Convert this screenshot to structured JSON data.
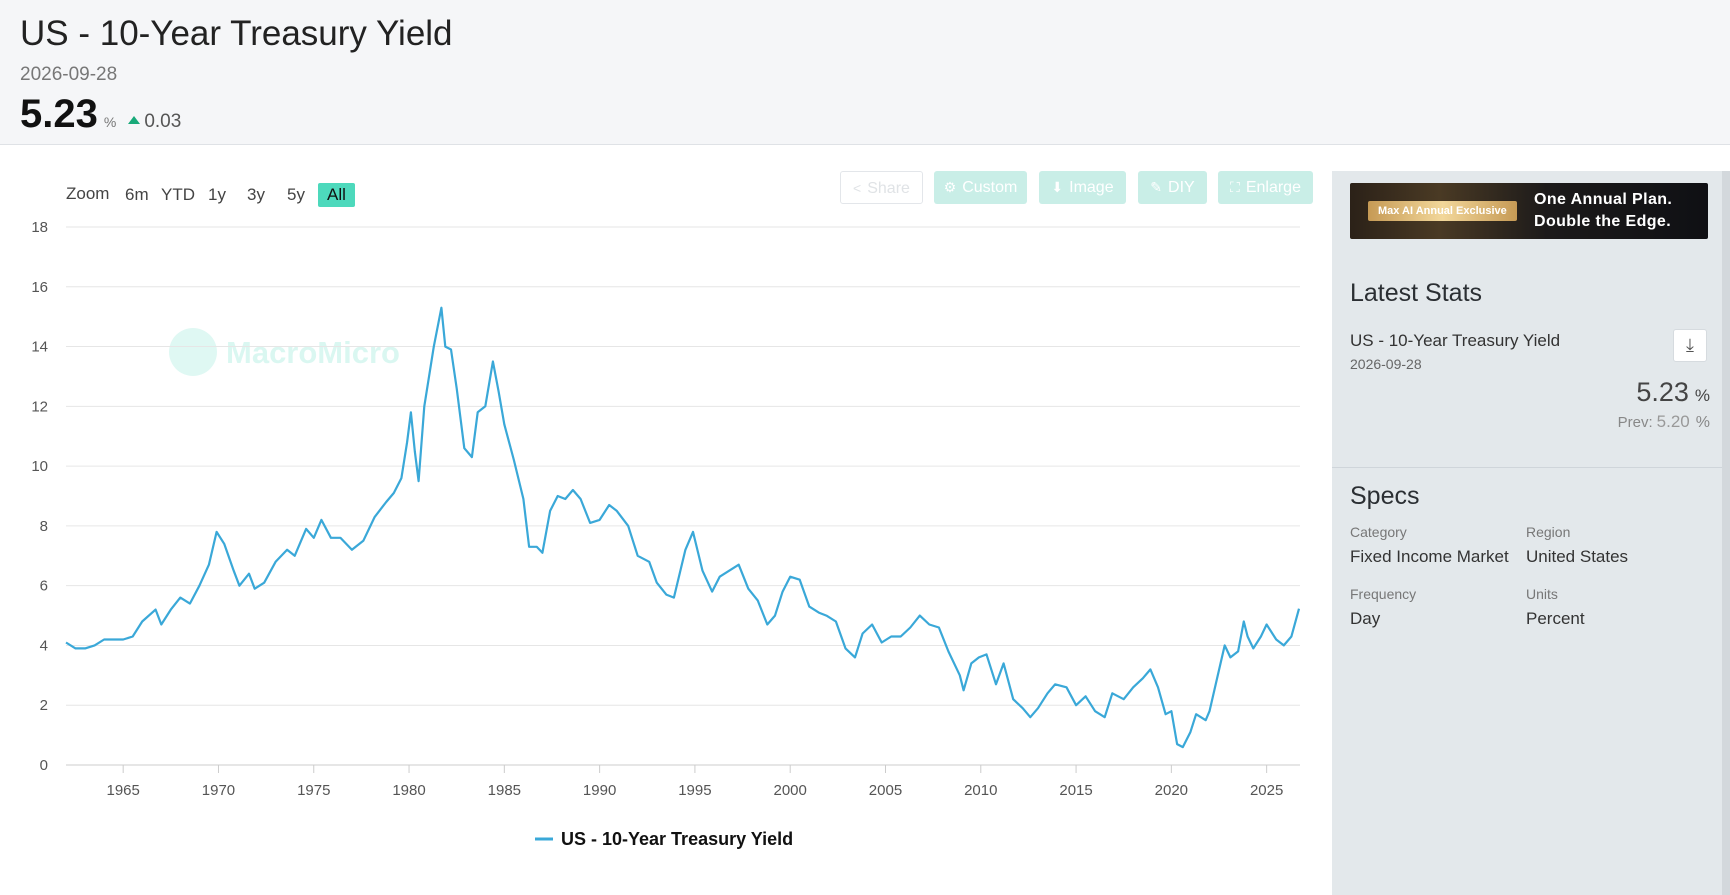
{
  "header": {
    "title": "US - 10-Year Treasury Yield",
    "date": "2026-09-28",
    "value": "5.23",
    "unit": "%",
    "change": "0.03",
    "change_color": "#18a979"
  },
  "toolbar": {
    "zoom_label": "Zoom",
    "ranges": [
      "6m",
      "YTD",
      "1y",
      "3y",
      "5y",
      "All"
    ],
    "active_range": "All",
    "buttons": {
      "share": "Share",
      "custom": "Custom",
      "image": "Image",
      "diy": "DIY",
      "enlarge": "Enlarge"
    }
  },
  "watermark": "MacroMicro",
  "chart_data": {
    "type": "line",
    "title": "",
    "xlabel": "",
    "ylabel": "",
    "xlim": [
      1962,
      2026.75
    ],
    "ylim": [
      0,
      18
    ],
    "y_ticks": [
      0,
      2,
      4,
      6,
      8,
      10,
      12,
      14,
      16,
      18
    ],
    "x_ticks": [
      1965,
      1970,
      1975,
      1980,
      1985,
      1990,
      1995,
      2000,
      2005,
      2010,
      2015,
      2020,
      2025
    ],
    "grid": true,
    "legend_position": "bottom-center",
    "series": [
      {
        "name": "US - 10-Year Treasury Yield",
        "color": "#3aa8d8",
        "x": [
          1962.0,
          1962.5,
          1963.0,
          1963.5,
          1964.0,
          1964.5,
          1965.0,
          1965.5,
          1966.0,
          1966.7,
          1967.0,
          1967.5,
          1968.0,
          1968.5,
          1969.0,
          1969.5,
          1969.9,
          1970.3,
          1970.8,
          1971.1,
          1971.6,
          1971.9,
          1972.4,
          1973.0,
          1973.6,
          1974.0,
          1974.6,
          1975.0,
          1975.4,
          1975.9,
          1976.4,
          1977.0,
          1977.6,
          1978.2,
          1978.8,
          1979.2,
          1979.6,
          1979.9,
          1980.1,
          1980.3,
          1980.5,
          1980.8,
          1981.0,
          1981.3,
          1981.7,
          1981.9,
          1982.2,
          1982.5,
          1982.9,
          1983.3,
          1983.6,
          1984.0,
          1984.4,
          1984.7,
          1985.0,
          1985.5,
          1986.0,
          1986.3,
          1986.7,
          1987.0,
          1987.4,
          1987.8,
          1988.2,
          1988.6,
          1989.0,
          1989.5,
          1990.0,
          1990.5,
          1990.9,
          1991.5,
          1992.0,
          1992.6,
          1993.0,
          1993.5,
          1993.9,
          1994.5,
          1994.9,
          1995.4,
          1995.9,
          1996.3,
          1996.8,
          1997.3,
          1997.8,
          1998.3,
          1998.8,
          1999.2,
          1999.6,
          2000.0,
          2000.5,
          2001.0,
          2001.5,
          2001.9,
          2002.4,
          2002.9,
          2003.4,
          2003.8,
          2004.3,
          2004.8,
          2005.3,
          2005.8,
          2006.3,
          2006.8,
          2007.3,
          2007.8,
          2008.3,
          2008.9,
          2009.1,
          2009.5,
          2009.9,
          2010.3,
          2010.8,
          2011.2,
          2011.7,
          2012.2,
          2012.6,
          2013.0,
          2013.5,
          2013.9,
          2014.5,
          2015.0,
          2015.5,
          2016.0,
          2016.5,
          2016.9,
          2017.5,
          2018.0,
          2018.5,
          2018.9,
          2019.3,
          2019.7,
          2020.0,
          2020.3,
          2020.6,
          2021.0,
          2021.3,
          2021.8,
          2022.0,
          2022.4,
          2022.8,
          2023.1,
          2023.5,
          2023.8,
          2024.0,
          2024.3,
          2024.7,
          2025.0,
          2025.5,
          2025.9,
          2026.3,
          2026.7
        ],
        "values": [
          4.1,
          3.9,
          3.9,
          4.0,
          4.2,
          4.2,
          4.2,
          4.3,
          4.8,
          5.2,
          4.7,
          5.2,
          5.6,
          5.4,
          6.0,
          6.7,
          7.8,
          7.4,
          6.5,
          6.0,
          6.4,
          5.9,
          6.1,
          6.8,
          7.2,
          7.0,
          7.9,
          7.6,
          8.2,
          7.6,
          7.6,
          7.2,
          7.5,
          8.3,
          8.8,
          9.1,
          9.6,
          10.8,
          11.8,
          10.5,
          9.5,
          12.0,
          12.8,
          14.0,
          15.3,
          14.0,
          13.9,
          12.6,
          10.6,
          10.3,
          11.8,
          12.0,
          13.5,
          12.5,
          11.4,
          10.2,
          8.9,
          7.3,
          7.3,
          7.1,
          8.5,
          9.0,
          8.9,
          9.2,
          8.9,
          8.1,
          8.2,
          8.7,
          8.5,
          8.0,
          7.0,
          6.8,
          6.1,
          5.7,
          5.6,
          7.2,
          7.8,
          6.5,
          5.8,
          6.3,
          6.5,
          6.7,
          5.9,
          5.5,
          4.7,
          5.0,
          5.8,
          6.3,
          6.2,
          5.3,
          5.1,
          5.0,
          4.8,
          3.9,
          3.6,
          4.4,
          4.7,
          4.1,
          4.3,
          4.3,
          4.6,
          5.0,
          4.7,
          4.6,
          3.8,
          3.0,
          2.5,
          3.4,
          3.6,
          3.7,
          2.7,
          3.4,
          2.2,
          1.9,
          1.6,
          1.9,
          2.4,
          2.7,
          2.6,
          2.0,
          2.3,
          1.8,
          1.6,
          2.4,
          2.2,
          2.6,
          2.9,
          3.2,
          2.6,
          1.7,
          1.8,
          0.7,
          0.6,
          1.1,
          1.7,
          1.5,
          1.8,
          2.9,
          4.0,
          3.6,
          3.8,
          4.8,
          4.3,
          3.9,
          4.3,
          4.7,
          4.2,
          4.0,
          4.3,
          5.23
        ]
      }
    ]
  },
  "sidebar": {
    "banner": {
      "badge": "Max AI Annual Exclusive",
      "line1": "One Annual Plan.",
      "line2": "Double the Edge."
    },
    "latest_stats_title": "Latest Stats",
    "stat_name": "US - 10-Year Treasury Yield",
    "stat_date": "2026-09-28",
    "stat_value": "5.23",
    "stat_unit": "%",
    "prev_label": "Prev:",
    "prev_value": "5.20",
    "prev_unit": "%",
    "specs_title": "Specs",
    "specs": [
      {
        "label": "Category",
        "value": "Fixed Income Market"
      },
      {
        "label": "Region",
        "value": "United States"
      },
      {
        "label": "Frequency",
        "value": "Day"
      },
      {
        "label": "Units",
        "value": "Percent"
      }
    ]
  }
}
